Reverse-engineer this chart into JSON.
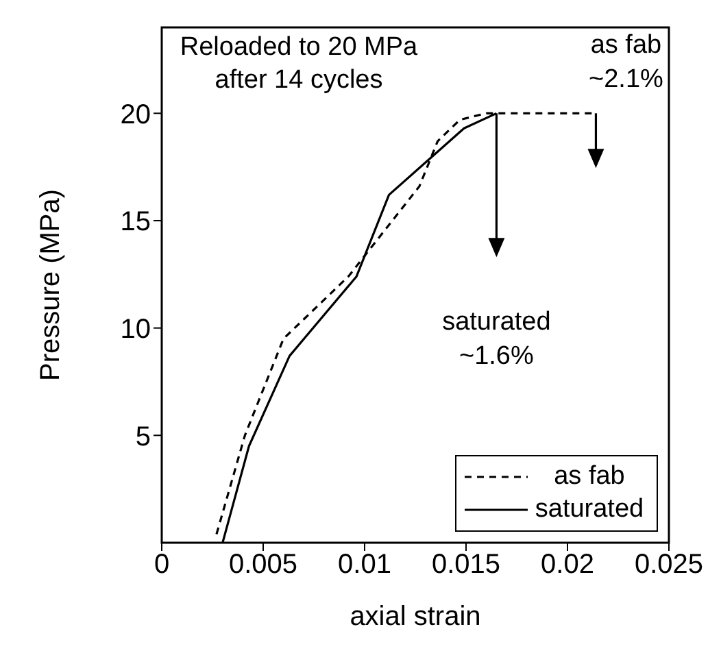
{
  "chart_data": {
    "type": "line",
    "xlabel": "axial strain",
    "ylabel": "Pressure (MPa)",
    "xlim": [
      0,
      0.025
    ],
    "xticks": [
      0,
      0.005,
      0.01,
      0.015,
      0.02,
      0.025
    ],
    "ylim": [
      0,
      24
    ],
    "yticks": [
      5,
      10,
      15,
      20
    ],
    "grid": false,
    "legend": "bottom right",
    "marker": "none",
    "series": [
      {
        "name": "as fab",
        "color": "#000000",
        "line_style": "dashed",
        "x": [
          0.0027,
          0.0041,
          0.006,
          0.0092,
          0.0127,
          0.0136,
          0.0147,
          0.016,
          0.018,
          0.0214
        ],
        "values": [
          0.4,
          5,
          9.5,
          12.4,
          16.6,
          18.7,
          19.7,
          20,
          20,
          20
        ]
      },
      {
        "name": "saturated",
        "color": "#000000",
        "line_style": "solid",
        "x": [
          0.003,
          0.0043,
          0.0063,
          0.0096,
          0.0112,
          0.0149,
          0.0165
        ],
        "values": [
          0,
          4.5,
          8.7,
          12.4,
          16.2,
          19.3,
          20
        ]
      }
    ],
    "annotations": [
      "Reloaded to 20 MPa after 14 cycles",
      "as fab ~2.1%",
      "saturated ~1.6%"
    ]
  }
}
